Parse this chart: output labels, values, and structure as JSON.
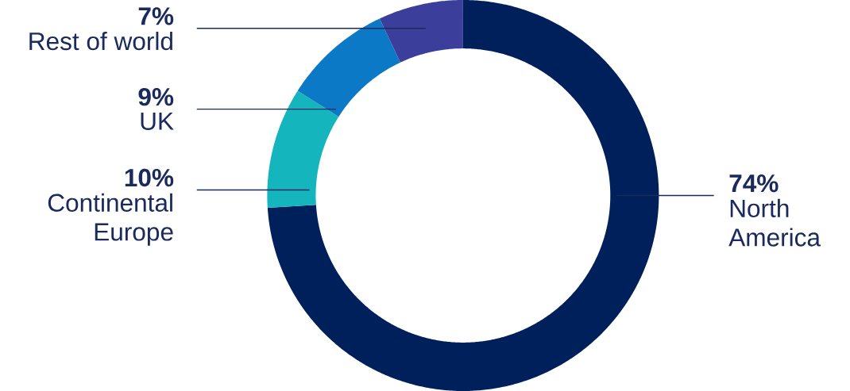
{
  "chart_data": {
    "type": "donut",
    "categories": [
      "North America",
      "Continental Europe",
      "UK",
      "Rest of world"
    ],
    "values": [
      74,
      10,
      9,
      7
    ],
    "value_labels": [
      "74%",
      "10%",
      "9%",
      "7%"
    ],
    "colors": [
      "#00205b",
      "#14b5bd",
      "#0b79c5",
      "#3b3f9b"
    ]
  }
}
